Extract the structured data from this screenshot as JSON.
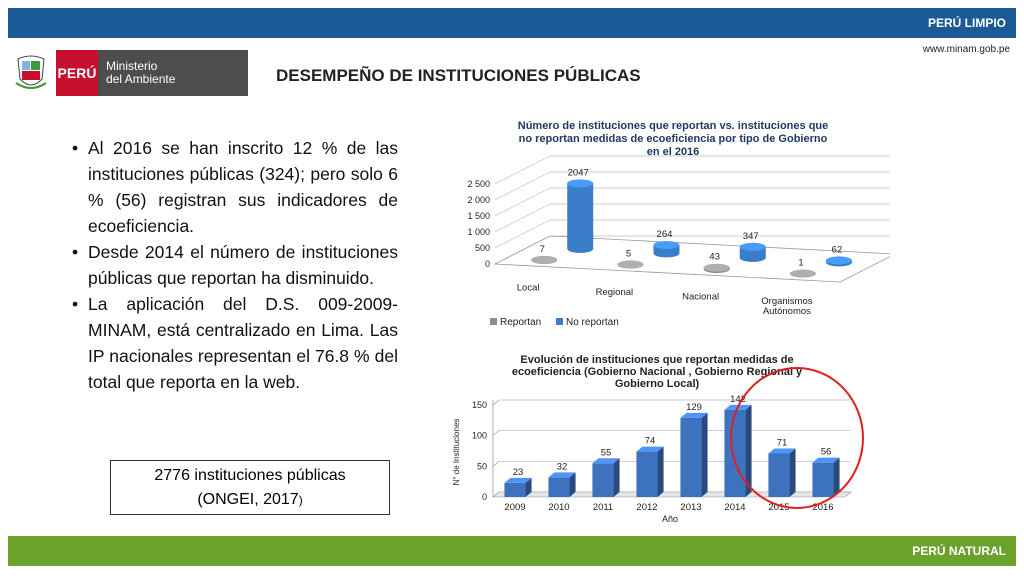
{
  "header": {
    "top_label": "PERÚ LIMPIO",
    "site": "www.minam.gob.pe",
    "bottom_label": "PERÚ NATURAL"
  },
  "logo": {
    "country": "PERÚ",
    "ministry_line1": "Ministerio",
    "ministry_line2": "del Ambiente"
  },
  "page_title": "DESEMPEÑO DE INSTITUCIONES PÚBLICAS",
  "bullets": [
    "Al 2016 se han inscrito 12 %  de las instituciones públicas (324); pero solo 6 % (56) registran sus indicadores de ecoeficiencia.",
    "Desde 2014 el número de instituciones públicas que reportan ha disminuido.",
    "La aplicación del D.S. 009-2009-MINAM, está centralizado en Lima. Las IP nacionales representan el 76.8 % del total que reporta en la web."
  ],
  "ongei_box": {
    "line1": "2776 instituciones públicas",
    "line2_main": "(ONGEI, 2017",
    "line2_tail": ")"
  },
  "colors": {
    "top_bar": "#1b5a96",
    "bottom_bar": "#6aa22c",
    "reportan": "#8c8c8c",
    "no_reportan": "#3a7dc9",
    "bar2": "#3d72bf",
    "circle": "#e02020"
  },
  "chart_data": [
    {
      "type": "bar",
      "title_lines": [
        "Número de instituciones que reportan vs. instituciones que",
        "no reportan medidas de ecoeficiencia por tipo de Gobierno",
        "en el 2016"
      ],
      "categories": [
        "Local",
        "Regional",
        "Nacional",
        "Organismos Autónomos"
      ],
      "category_lines": [
        [
          "Local"
        ],
        [
          "Regional"
        ],
        [
          "Nacional"
        ],
        [
          "Organismos",
          "Autónomos"
        ]
      ],
      "series": [
        {
          "name": "Reportan",
          "values": [
            7,
            5,
            43,
            1
          ]
        },
        {
          "name": "No reportan",
          "values": [
            2047,
            264,
            347,
            62
          ]
        }
      ],
      "yticks": [
        "2 500",
        "2 000",
        "1 500",
        "1 000",
        "500",
        "0"
      ],
      "ylim": [
        0,
        2500
      ],
      "legend": "bottom",
      "three_d": true
    },
    {
      "type": "bar",
      "title_lines": [
        "Evolución de instituciones que reportan medidas de",
        "ecoeficiencia (Gobierno Nacional , Gobierno Regional y",
        "Gobierno Local)"
      ],
      "categories": [
        "2009",
        "2010",
        "2011",
        "2012",
        "2013",
        "2014",
        "2015",
        "2016"
      ],
      "values": [
        23,
        32,
        55,
        74,
        129,
        142,
        71,
        56
      ],
      "value_labels": [
        "23",
        "32",
        "55",
        "74",
        "129",
        "142",
        "71",
        "56"
      ],
      "yticks": [
        "150",
        "100",
        "50",
        "0"
      ],
      "ytick_values": [
        150,
        100,
        50,
        0
      ],
      "ylim": [
        0,
        150
      ],
      "xlabel": "Año",
      "ylabel": "N° de Instituciones",
      "annotation": "red circle around 2014–2016",
      "three_d": true
    }
  ]
}
